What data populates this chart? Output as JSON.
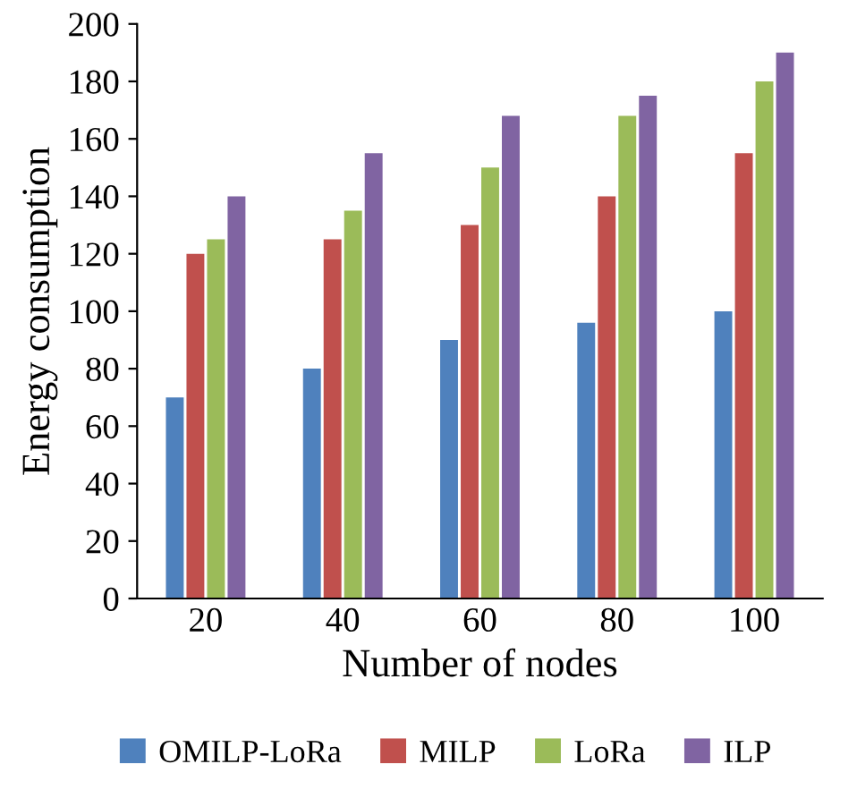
{
  "chart_data": {
    "type": "bar",
    "xlabel": "Number of nodes",
    "ylabel": "Energy consumption",
    "categories": [
      "20",
      "40",
      "60",
      "80",
      "100"
    ],
    "series": [
      {
        "name": "OMILP-LoRa",
        "color": "#4f81bd",
        "values": [
          70,
          80,
          90,
          96,
          100
        ]
      },
      {
        "name": "MILP",
        "color": "#c0504d",
        "values": [
          120,
          125,
          130,
          140,
          155
        ]
      },
      {
        "name": "LoRa",
        "color": "#9bbb59",
        "values": [
          125,
          135,
          150,
          168,
          180
        ]
      },
      {
        "name": "ILP",
        "color": "#8064a2",
        "values": [
          140,
          155,
          168,
          175,
          190
        ]
      }
    ],
    "ylim": [
      0,
      200
    ],
    "yticks": [
      0,
      20,
      40,
      60,
      80,
      100,
      120,
      140,
      160,
      180,
      200
    ],
    "grid": false,
    "legend": "bottom"
  }
}
